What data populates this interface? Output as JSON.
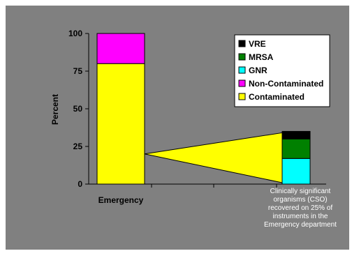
{
  "chart_data": {
    "type": "bar",
    "stacked": true,
    "ylabel": "Percent",
    "ylim": [
      0,
      100
    ],
    "yticks": [
      0,
      25,
      50,
      75,
      100
    ],
    "categories": [
      "Emergency"
    ],
    "series": [
      {
        "name": "Contaminated",
        "values": [
          80
        ],
        "color": "#ffff00"
      },
      {
        "name": "Non-Contaminated",
        "values": [
          20
        ],
        "color": "#ff00ff"
      }
    ],
    "breakdown": {
      "series": [
        {
          "name": "GNR",
          "value": 17,
          "color": "#00ffff"
        },
        {
          "name": "MRSA",
          "value": 13,
          "color": "#008000"
        },
        {
          "name": "VRE",
          "value": 5,
          "color": "#000000"
        }
      ]
    },
    "legend": {
      "placement": "top-right",
      "order": [
        "VRE",
        "MRSA",
        "GNR",
        "Non-Contaminated",
        "Contaminated"
      ]
    },
    "annotation": "Clinically significant organisms (CSO) recovered on 25% of instruments in the Emergency department",
    "grid": false,
    "colors": {
      "background": "#808080",
      "plot_area": "#808080",
      "connector": "#ffff00"
    }
  }
}
